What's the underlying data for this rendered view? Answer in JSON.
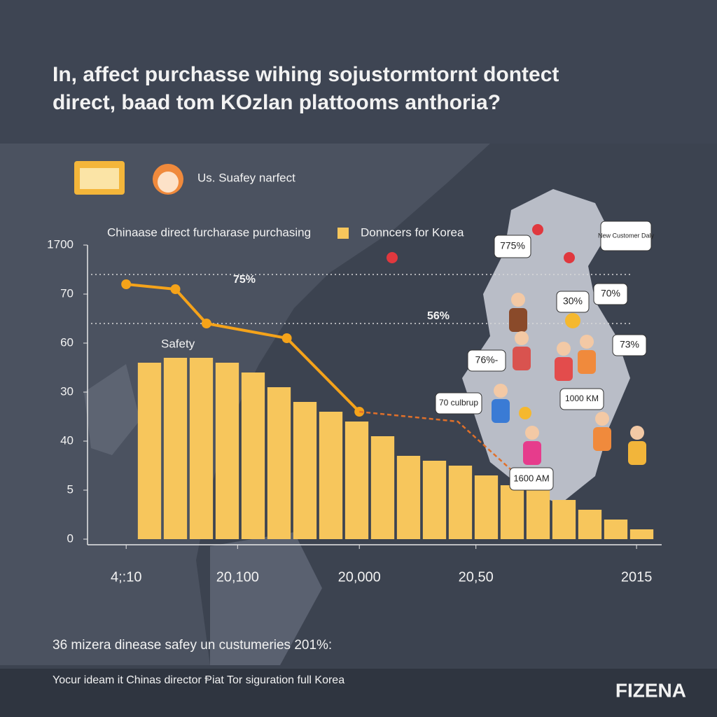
{
  "chart_data": {
    "type": "bar",
    "title": [
      "In, affect purchasse wihing sojustormtornt dontect",
      "direct, baad tom KOzlan plattooms anthoria?"
    ],
    "subtitle": "Us. Suafey narfect",
    "categories": [
      null,
      null,
      null,
      null,
      null,
      null,
      null,
      null,
      null,
      null,
      null,
      null,
      null,
      null,
      null,
      null,
      null,
      null,
      null,
      null
    ],
    "series": [
      {
        "name": "Donncers for Korea",
        "type": "bar",
        "color": "#f7c65c",
        "values": [
          3.6,
          3.7,
          3.7,
          3.6,
          3.4,
          3.1,
          2.8,
          2.6,
          2.4,
          2.1,
          1.7,
          1.6,
          1.5,
          1.3,
          1.1,
          1.0,
          0.8,
          0.6,
          0.4,
          0.2
        ]
      },
      {
        "name": "Chinaase direct furcharase purchasing",
        "type": "line",
        "color": "#f5a31a",
        "markers": true,
        "x": [
          -0.9,
          1.0,
          2.2,
          5.3,
          8.1
        ],
        "values": [
          5.2,
          5.1,
          4.4,
          4.1,
          2.6
        ]
      },
      {
        "type": "line",
        "color": "#e0702a",
        "dashed": true,
        "x": [
          8.1,
          11.9,
          14.2
        ],
        "values": [
          2.6,
          2.4,
          1.3
        ]
      }
    ],
    "ylim": [
      0,
      6
    ],
    "yticks": [
      {
        "value": 6,
        "label": "1700"
      },
      {
        "value": 5,
        "label": "70"
      },
      {
        "value": 4,
        "label": "60"
      },
      {
        "value": 3,
        "label": "30"
      },
      {
        "value": 2,
        "label": "40"
      },
      {
        "value": 1,
        "label": "5"
      },
      0
    ],
    "xticks": [
      {
        "value": -0.9,
        "label": "4;:10"
      },
      {
        "value": 3.4,
        "label": "20,100"
      },
      {
        "value": 8.1,
        "label": "20,000"
      },
      {
        "value": 12.6,
        "label": "20,50"
      },
      {
        "value": 18.8,
        "label": "2015"
      }
    ],
    "annotations": [
      {
        "text": "Safety"
      },
      {
        "text": "75%",
        "y": 5.4
      },
      {
        "text": "56%",
        "y": 4.4
      }
    ]
  },
  "callouts": [
    "775%",
    "New Customer Daly",
    "30%",
    "70%",
    "73%",
    "76%-",
    "70 culbrup",
    "1000 KM",
    "1600 AM"
  ],
  "caption": "36 mizera dinease safey un custumeries 201%:",
  "footer": {
    "text": "Yocur ideam it Chinas director Ᵽiat Tor siguration full Korea",
    "brand": "FIZENA"
  }
}
